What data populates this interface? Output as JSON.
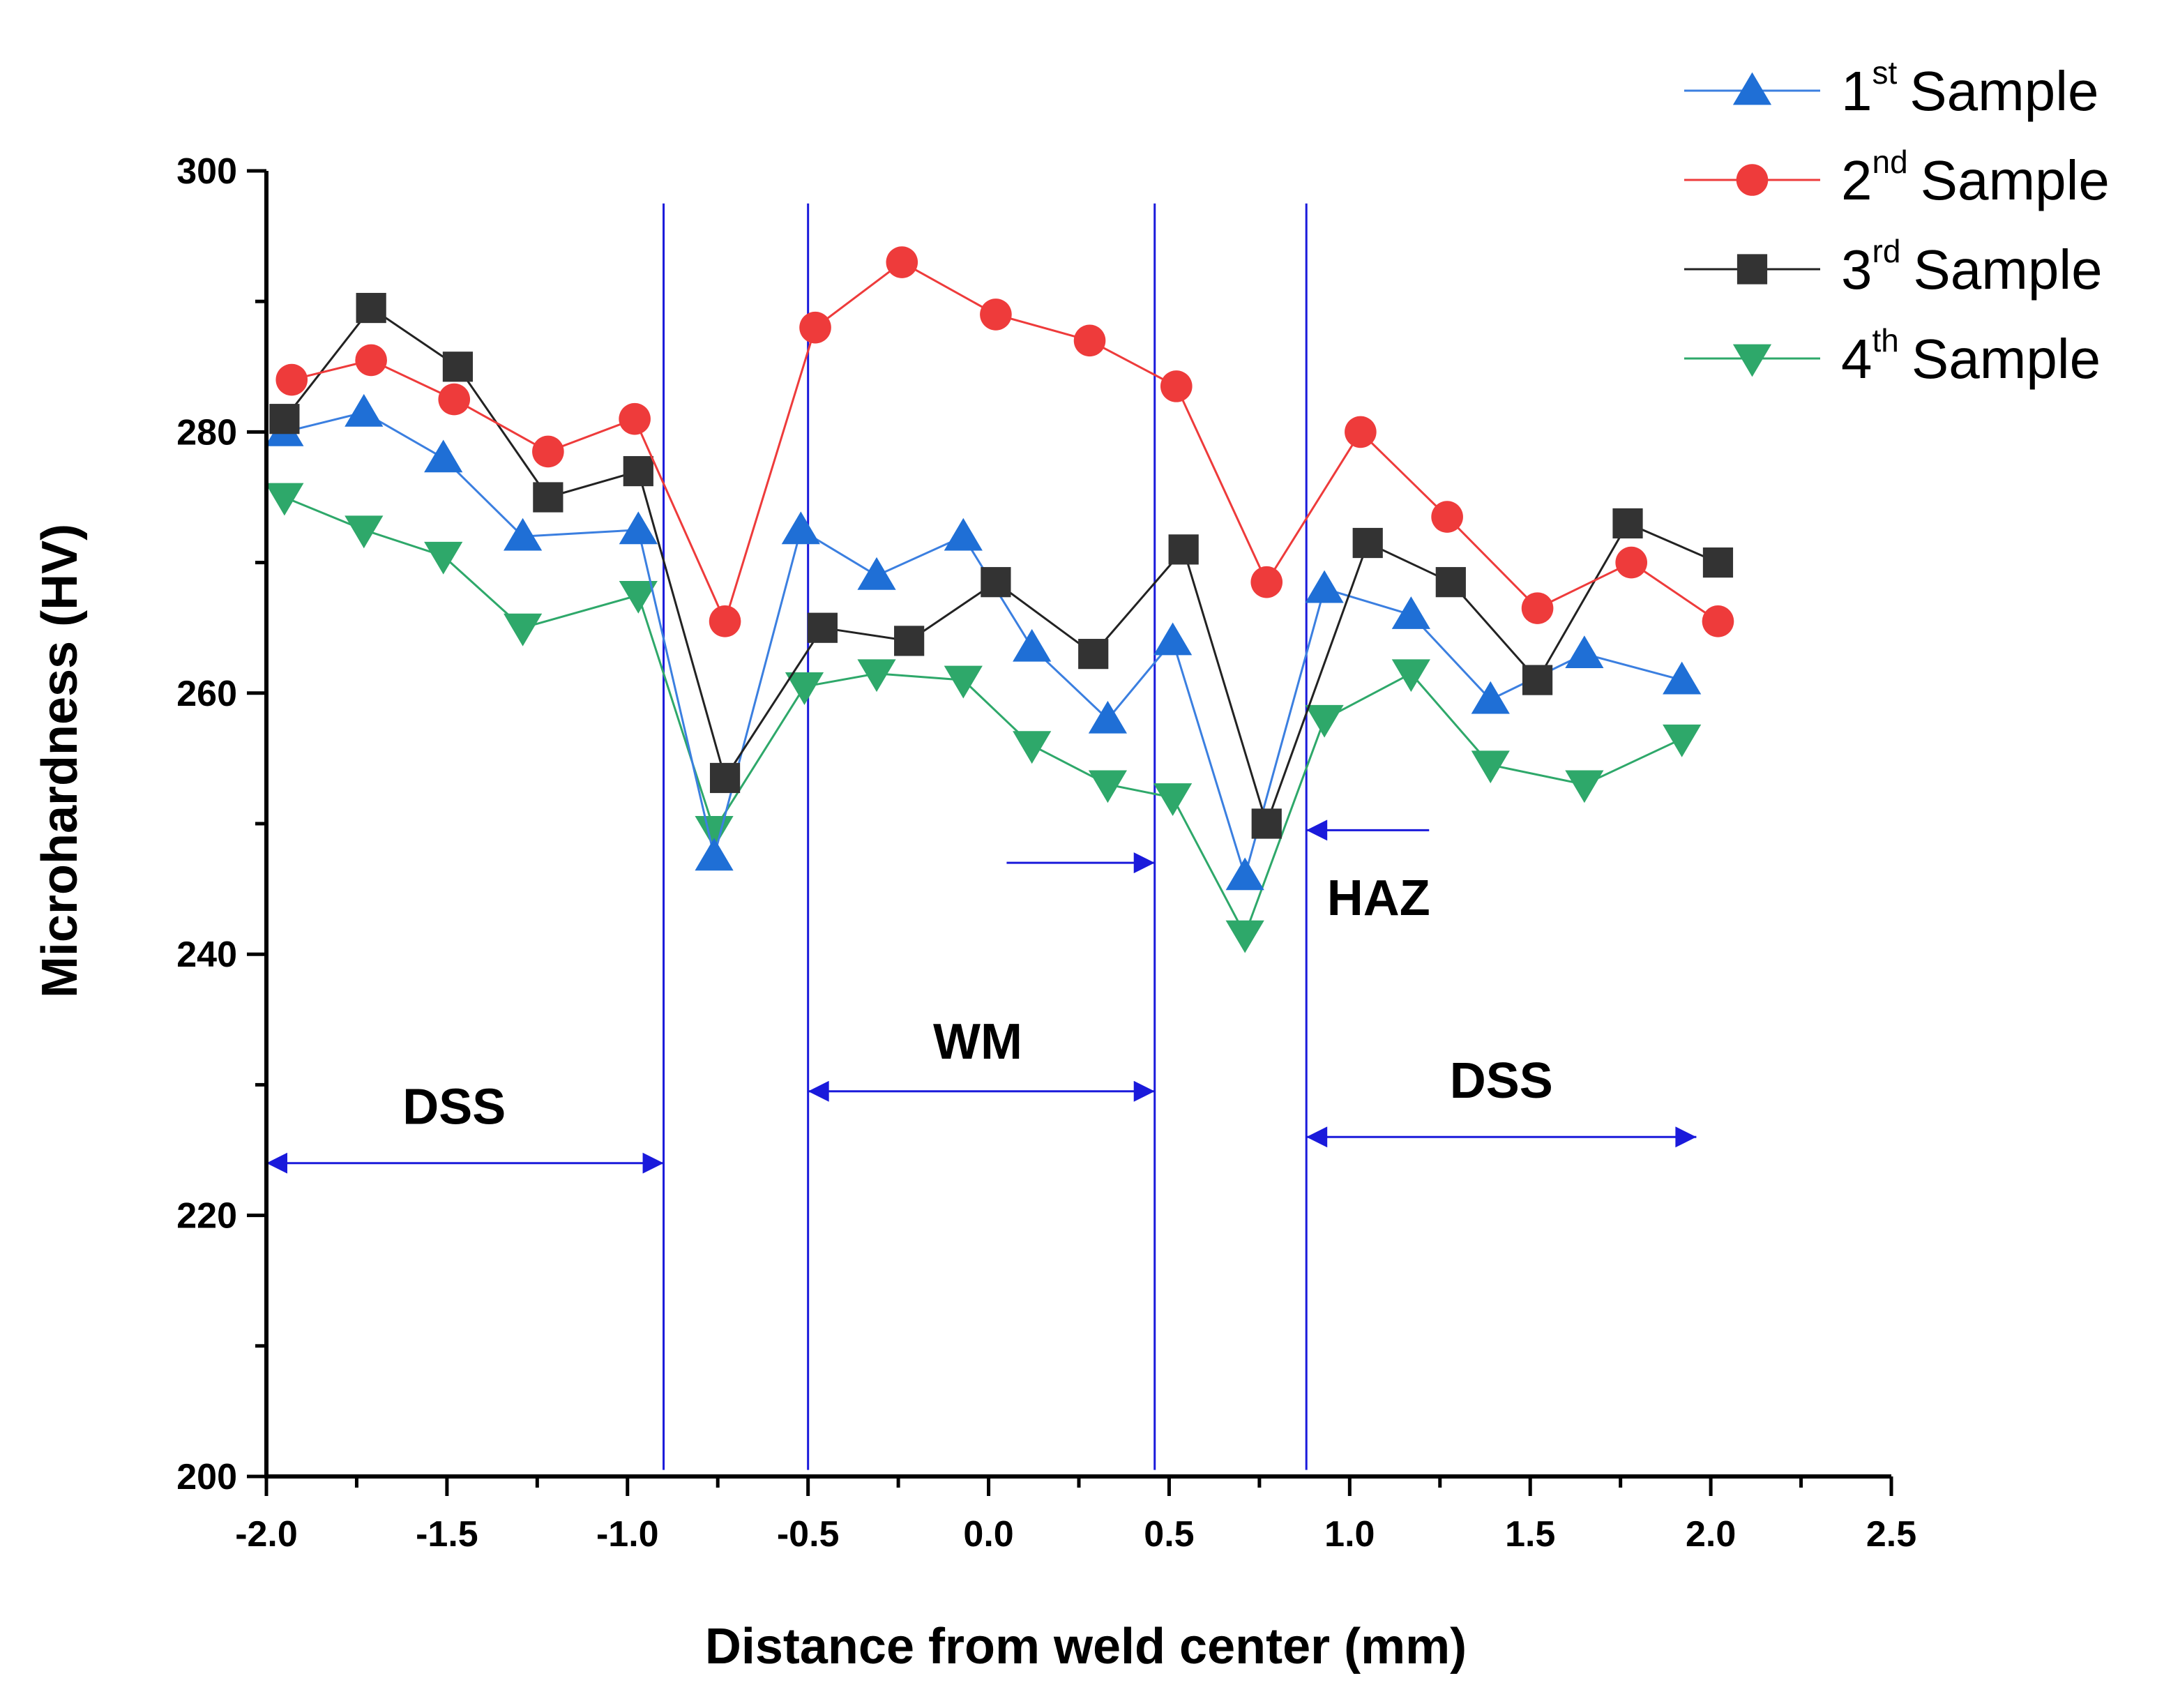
{
  "chart_data": {
    "type": "line",
    "title": "",
    "xlabel": "Distance from weld center (mm)",
    "ylabel": "Microhardness (HV)",
    "xlim": [
      -2.0,
      2.5
    ],
    "ylim": [
      200,
      300
    ],
    "x_ticks": [
      -2.0,
      -1.5,
      -1.0,
      -0.5,
      0.0,
      0.5,
      1.0,
      1.5,
      2.0,
      2.5
    ],
    "x_tick_labels": [
      "-2.0",
      "-1.5",
      "-1.0",
      "-0.5",
      "0.0",
      "0.5",
      "1.0",
      "1.5",
      "2.0",
      "2.5"
    ],
    "y_ticks": [
      200,
      220,
      240,
      260,
      280,
      300
    ],
    "y_tick_labels": [
      "200",
      "220",
      "240",
      "260",
      "280",
      "300"
    ],
    "y_minor_step": 10,
    "grid": false,
    "legend_position": "top-right",
    "series": [
      {
        "name_num": "1",
        "name_sup": "st",
        "name_text": "Sample",
        "marker": "triangle-up",
        "color": "#1f6fd6",
        "line_color": "#3b7fe0",
        "x": [
          -1.95,
          -1.73,
          -1.51,
          -1.29,
          -0.97,
          -0.76,
          -0.52,
          -0.31,
          -0.07,
          0.12,
          0.33,
          0.51,
          0.71,
          0.93,
          1.17,
          1.39,
          1.65,
          1.92
        ],
        "y": [
          280,
          281.5,
          278,
          272,
          272.5,
          247.5,
          272.5,
          269,
          272,
          263.5,
          258,
          264,
          246,
          268,
          266,
          259.5,
          263,
          261
        ]
      },
      {
        "name_num": "2",
        "name_sup": "nd",
        "name_text": "Sample",
        "marker": "circle",
        "color": "#ee3b3b",
        "line_color": "#ee3b3b",
        "x": [
          -1.93,
          -1.71,
          -1.48,
          -1.22,
          -0.98,
          -0.73,
          -0.48,
          -0.24,
          0.02,
          0.28,
          0.52,
          0.77,
          1.03,
          1.27,
          1.52,
          1.78,
          2.02
        ],
        "y": [
          284,
          285.5,
          282.5,
          278.5,
          281,
          265.5,
          288,
          293,
          289,
          287,
          283.5,
          268.5,
          280,
          273.5,
          266.5,
          270,
          265.5
        ]
      },
      {
        "name_num": "3",
        "name_sup": "rd",
        "name_text": "Sample",
        "marker": "square",
        "color": "#333333",
        "line_color": "#222222",
        "x": [
          -1.95,
          -1.71,
          -1.47,
          -1.22,
          -0.97,
          -0.73,
          -0.46,
          -0.22,
          0.02,
          0.29,
          0.54,
          0.77,
          1.05,
          1.28,
          1.52,
          1.77,
          2.02
        ],
        "y": [
          281,
          289.5,
          285,
          275,
          277,
          253.5,
          265,
          264,
          268.5,
          263,
          271,
          250,
          271.5,
          268.5,
          261,
          273,
          270
        ]
      },
      {
        "name_num": "4",
        "name_sup": "th",
        "name_text": "Sample",
        "marker": "triangle-down",
        "color": "#2ea86a",
        "line_color": "#2ea86a",
        "x": [
          -1.95,
          -1.73,
          -1.51,
          -1.29,
          -0.97,
          -0.76,
          -0.51,
          -0.31,
          -0.07,
          0.12,
          0.33,
          0.51,
          0.71,
          0.93,
          1.17,
          1.39,
          1.65,
          1.92
        ],
        "y": [
          275,
          272.5,
          270.5,
          265,
          267.5,
          249.5,
          260.5,
          261.5,
          261,
          256,
          253,
          252,
          241.5,
          258,
          261.5,
          254.5,
          253,
          256.5
        ]
      }
    ],
    "boundaries": {
      "x": [
        -0.9,
        -0.5,
        0.46,
        0.88
      ],
      "color": "#1a1adb"
    },
    "regions": [
      {
        "label": "DSS",
        "label_x": -1.48,
        "label_y": 227,
        "arrow_from": -2.0,
        "arrow_to": -0.9,
        "arrow_y": 224,
        "style": "double"
      },
      {
        "label": "WM",
        "label_x": -0.03,
        "label_y": 232,
        "arrow_from": -0.5,
        "arrow_to": 0.46,
        "arrow_y": 229.5,
        "style": "double"
      },
      {
        "label": "DSS",
        "label_x": 1.42,
        "label_y": 229,
        "arrow_from": 0.88,
        "arrow_to": 1.96,
        "arrow_y": 226,
        "style": "double"
      },
      {
        "label": "HAZ",
        "label_x": 1.08,
        "label_y": 243,
        "arrows": [
          {
            "from": 0.05,
            "to": 0.46,
            "y": 247
          },
          {
            "from": 1.22,
            "to": 0.88,
            "y": 249.5
          }
        ],
        "style": "single"
      }
    ]
  }
}
